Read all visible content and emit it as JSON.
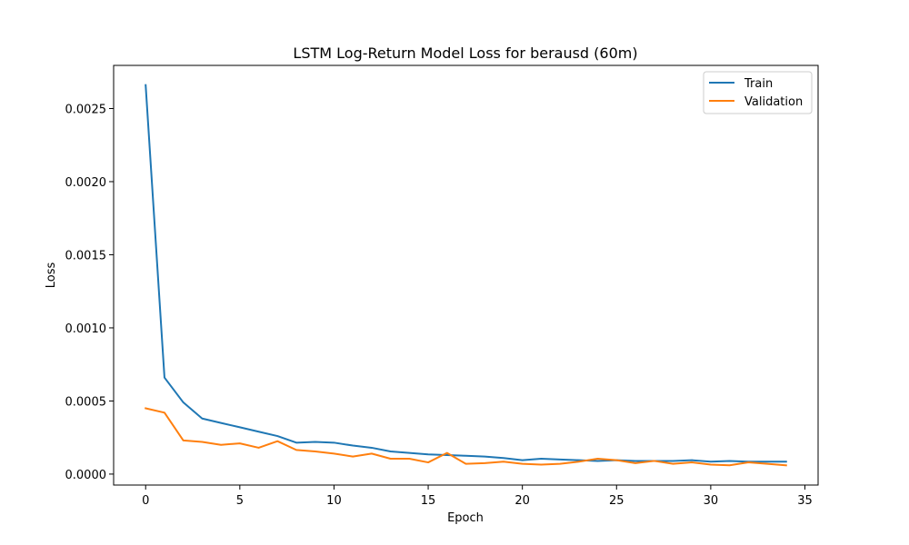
{
  "chart_data": {
    "type": "line",
    "title": "LSTM Log-Return Model Loss for berausd (60m)",
    "xlabel": "Epoch",
    "ylabel": "Loss",
    "xlim": [
      -1.7,
      35.7
    ],
    "ylim": [
      -7.5e-05,
      0.002795
    ],
    "xticks": [
      0,
      5,
      10,
      15,
      20,
      25,
      30,
      35
    ],
    "xtick_labels": [
      "0",
      "5",
      "10",
      "15",
      "20",
      "25",
      "30",
      "35"
    ],
    "yticks": [
      0.0,
      0.0005,
      0.001,
      0.0015,
      0.002,
      0.0025
    ],
    "ytick_labels": [
      "0.0000",
      "0.0005",
      "0.0010",
      "0.0015",
      "0.0020",
      "0.0025"
    ],
    "grid": false,
    "legend_position": "top-right",
    "x": [
      0,
      1,
      2,
      3,
      4,
      5,
      6,
      7,
      8,
      9,
      10,
      11,
      12,
      13,
      14,
      15,
      16,
      17,
      18,
      19,
      20,
      21,
      22,
      23,
      24,
      25,
      26,
      27,
      28,
      29,
      30,
      31,
      32,
      33,
      34
    ],
    "series": [
      {
        "name": "Train",
        "color": "#1f77b4",
        "values": [
          0.00266,
          0.00066,
          0.00049,
          0.00038,
          0.00035,
          0.00032,
          0.00029,
          0.00026,
          0.000215,
          0.00022,
          0.000215,
          0.000195,
          0.00018,
          0.000155,
          0.000145,
          0.000135,
          0.00013,
          0.000125,
          0.00012,
          0.00011,
          9.5e-05,
          0.000105,
          0.0001,
          9.5e-05,
          9e-05,
          9.5e-05,
          9e-05,
          9e-05,
          9e-05,
          9.5e-05,
          8.5e-05,
          9e-05,
          8.5e-05,
          8.5e-05,
          8.5e-05
        ]
      },
      {
        "name": "Validation",
        "color": "#ff7f0e",
        "values": [
          0.00045,
          0.00042,
          0.00023,
          0.00022,
          0.0002,
          0.00021,
          0.00018,
          0.000225,
          0.000165,
          0.000155,
          0.00014,
          0.00012,
          0.00014,
          0.000105,
          0.000105,
          8e-05,
          0.000145,
          7e-05,
          7.5e-05,
          8.5e-05,
          7e-05,
          6.5e-05,
          7e-05,
          8.5e-05,
          0.000105,
          9.5e-05,
          7.5e-05,
          9e-05,
          7e-05,
          8e-05,
          6.5e-05,
          6e-05,
          8e-05,
          7e-05,
          6e-05
        ]
      }
    ]
  }
}
